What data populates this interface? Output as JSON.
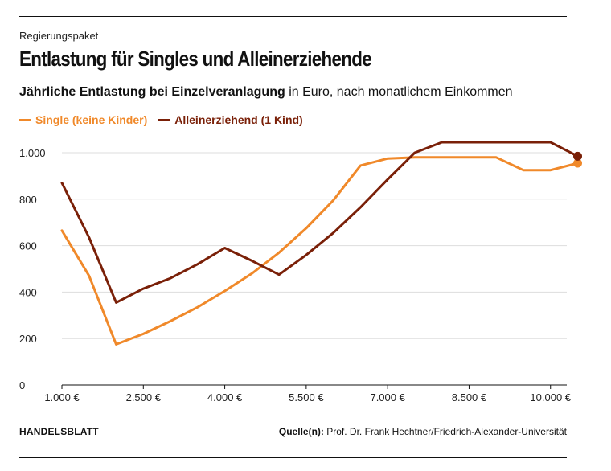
{
  "kicker": "Regierungspaket",
  "title": "Entlastung für Singles und Alleinerziehende",
  "subtitle_bold": "Jährliche Entlastung bei Einzelveranlagung",
  "subtitle_rest": " in Euro, nach monatlichem Einkommen",
  "brand": "HANDELSBLATT",
  "source_label": "Quelle(n):",
  "source_text": " Prof. Dr. Frank Hechtner/Friedrich-Alexander-Universität",
  "chart_data": {
    "type": "line",
    "x_ticks": [
      1000,
      2500,
      4000,
      5500,
      7000,
      8500,
      10000
    ],
    "x_tick_labels": [
      "1.000 €",
      "2.500 €",
      "4.000 €",
      "5.500 €",
      "7.000 €",
      "8.500 €",
      "10.000 €"
    ],
    "y_ticks": [
      0,
      200,
      400,
      600,
      800,
      1000
    ],
    "y_tick_labels": [
      "0",
      "200",
      "400",
      "600",
      "800",
      "1.000"
    ],
    "xlim": [
      1000,
      10300
    ],
    "ylim": [
      0,
      1000
    ],
    "grid": true,
    "legend_position": "top-left",
    "series": [
      {
        "name": "Single (keine Kinder)",
        "color": "#F0892A",
        "x": [
          1000,
          1500,
          2000,
          2500,
          3000,
          3500,
          4000,
          4500,
          5000,
          5500,
          6000,
          6500,
          7000,
          7500,
          8000,
          8500,
          9000,
          9500,
          10000,
          10500
        ],
        "y": [
          665,
          470,
          175,
          220,
          275,
          335,
          405,
          480,
          570,
          675,
          795,
          945,
          975,
          980,
          980,
          980,
          980,
          925,
          925,
          955
        ]
      },
      {
        "name": "Alleinerziehend (1 Kind)",
        "color": "#7A2008",
        "x": [
          1000,
          1500,
          2000,
          2500,
          3000,
          3500,
          4000,
          4500,
          5000,
          5500,
          6000,
          6500,
          7000,
          7500,
          8000,
          8500,
          9000,
          9500,
          10000,
          10500
        ],
        "y": [
          870,
          635,
          355,
          415,
          460,
          520,
          590,
          535,
          475,
          560,
          655,
          765,
          885,
          1000,
          1045,
          1045,
          1045,
          1045,
          1045,
          985
        ]
      }
    ]
  }
}
